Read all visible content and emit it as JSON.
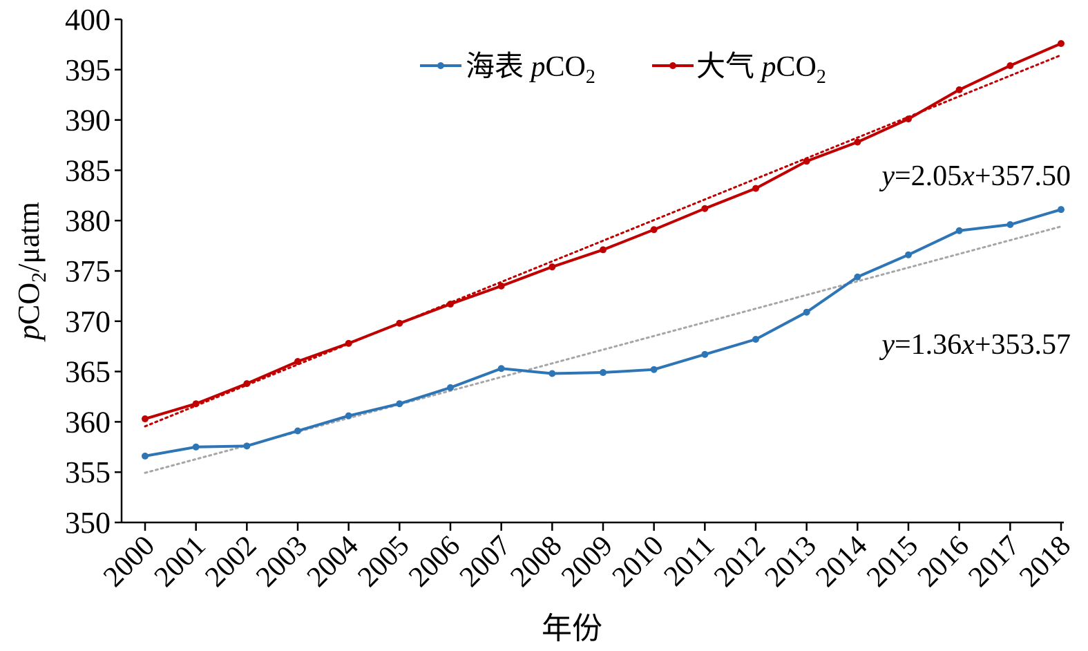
{
  "chart_data": {
    "type": "line",
    "xlabel": "年份",
    "ylabel": {
      "italic": "p",
      "main": "CO",
      "sub": "2",
      "rest": "/μatm"
    },
    "ylim": [
      350,
      400
    ],
    "yticks": [
      350,
      355,
      360,
      365,
      370,
      375,
      380,
      385,
      390,
      395,
      400
    ],
    "x": [
      "2000",
      "2001",
      "2002",
      "2003",
      "2004",
      "2005",
      "2006",
      "2007",
      "2008",
      "2009",
      "2010",
      "2011",
      "2012",
      "2013",
      "2014",
      "2015",
      "2016",
      "2017",
      "2018"
    ],
    "grid": false,
    "legend_position": "top",
    "series": [
      {
        "key": "sea",
        "legend": {
          "main": "海表 ",
          "italic": "p",
          "tail": "CO",
          "sub": "2"
        },
        "color": "#2e75b6",
        "values": [
          356.6,
          357.5,
          357.6,
          359.1,
          360.6,
          361.8,
          363.4,
          365.3,
          364.8,
          364.9,
          365.2,
          366.7,
          368.2,
          370.9,
          374.4,
          376.6,
          379.0,
          379.6,
          381.1
        ],
        "trendline": {
          "slope": 1.36,
          "intercept": 353.57,
          "color": "#a6a6a6",
          "label": {
            "y": "y",
            "eq1": "=1.36",
            "x": "x",
            "eq2": "+353.57"
          }
        }
      },
      {
        "key": "air",
        "legend": {
          "main": "大气 ",
          "italic": "p",
          "tail": "CO",
          "sub": "2"
        },
        "color": "#c00000",
        "values": [
          360.3,
          361.8,
          363.8,
          366.0,
          367.8,
          369.8,
          371.7,
          373.5,
          375.4,
          377.1,
          379.1,
          381.2,
          383.2,
          385.9,
          387.8,
          390.1,
          393.0,
          395.4,
          397.6
        ],
        "trendline": {
          "slope": 2.05,
          "intercept": 357.5,
          "color": "#c00000",
          "label": {
            "y": "y",
            "eq1": "=2.05",
            "x": "x",
            "eq2": "+357.50"
          }
        }
      }
    ]
  }
}
